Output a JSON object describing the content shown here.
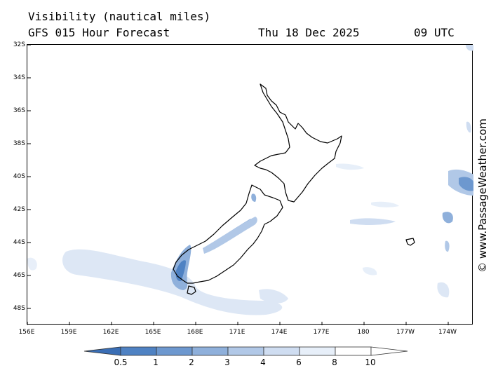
{
  "header": {
    "title": "Visibility (nautical miles)",
    "subtitle": "GFS 015 Hour Forecast",
    "date": "Thu 18 Dec 2025",
    "time": "09 UTC"
  },
  "credit": "© www.PassageWeather.com",
  "axes": {
    "lat_labels": [
      "32S",
      "34S",
      "36S",
      "38S",
      "40S",
      "42S",
      "44S",
      "46S",
      "48S"
    ],
    "lon_labels": [
      "156E",
      "159E",
      "162E",
      "165E",
      "168E",
      "171E",
      "174E",
      "177E",
      "180",
      "177W",
      "174W"
    ]
  },
  "legend": {
    "labels": [
      "0.5",
      "1",
      "2",
      "3",
      "4",
      "6",
      "8",
      "10"
    ],
    "colors": [
      "#3a6eb5",
      "#4f82c3",
      "#6d98cf",
      "#8fb0db",
      "#b1c8e7",
      "#cfddf1",
      "#e7eff9",
      "#ffffff"
    ]
  },
  "colors": {
    "land_outline": "#000000",
    "low_visibility": "#3a6eb5",
    "haze": "#d6e3f3"
  }
}
